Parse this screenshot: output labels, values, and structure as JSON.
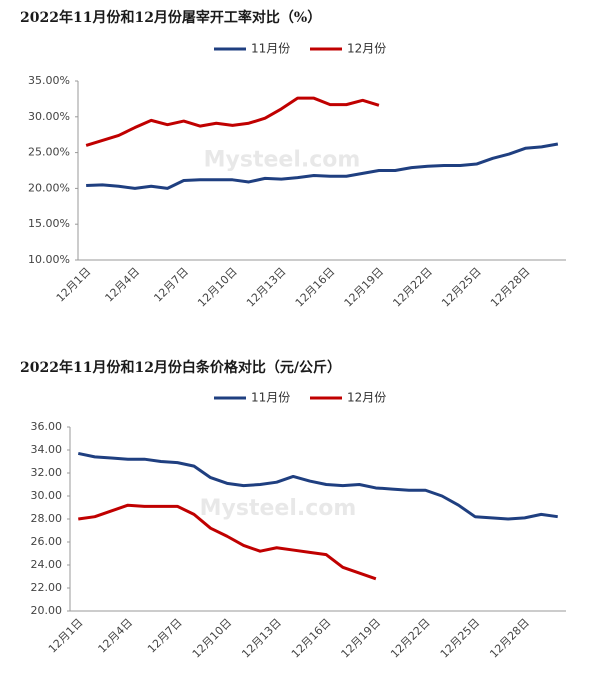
{
  "chart_data": [
    {
      "type": "line",
      "title": "2022年11月份和12月份屠宰开工率对比（%）",
      "categories": [
        "12月1日",
        null,
        null,
        "12月4日",
        null,
        null,
        "12月7日",
        null,
        null,
        "12月10日",
        null,
        null,
        "12月13日",
        null,
        null,
        "12月16日",
        null,
        null,
        "12月19日",
        null,
        null,
        "12月22日",
        null,
        null,
        "12月25日",
        null,
        null,
        "12月28日",
        null,
        null
      ],
      "series": [
        {
          "name": "11月份",
          "color": "#1f3f80",
          "values": [
            20.4,
            20.5,
            20.3,
            20.0,
            20.3,
            20.0,
            21.1,
            21.2,
            21.2,
            21.2,
            20.9,
            21.4,
            21.3,
            21.5,
            21.8,
            21.7,
            21.7,
            22.1,
            22.5,
            22.5,
            22.9,
            23.1,
            23.2,
            23.2,
            23.4,
            24.2,
            24.8,
            25.6,
            25.8,
            26.2
          ]
        },
        {
          "name": "12月份",
          "color": "#c00000",
          "values": [
            26.0,
            26.7,
            27.4,
            28.5,
            29.5,
            28.9,
            29.4,
            28.7,
            29.1,
            28.8,
            29.1,
            29.8,
            31.1,
            32.6,
            32.6,
            31.7,
            31.7,
            32.3,
            31.6,
            null,
            null,
            null,
            null,
            null,
            null,
            null,
            null,
            null,
            null,
            null
          ]
        }
      ],
      "ylim": [
        10,
        35
      ],
      "yticks": [
        {
          "value": 10,
          "label": "10.00%"
        },
        {
          "value": 15,
          "label": "15.00%"
        },
        {
          "value": 20,
          "label": "20.00%"
        },
        {
          "value": 25,
          "label": "25.00%"
        },
        {
          "value": 30,
          "label": "30.00%"
        },
        {
          "value": 35,
          "label": "35.00%"
        }
      ],
      "legend": "top",
      "watermark": "Mysteel.com"
    },
    {
      "type": "line",
      "title": "2022年11月份和12月份白条价格对比（元/公斤）",
      "categories": [
        "12月1日",
        null,
        null,
        "12月4日",
        null,
        null,
        "12月7日",
        null,
        null,
        "12月10日",
        null,
        null,
        "12月13日",
        null,
        null,
        "12月16日",
        null,
        null,
        "12月19日",
        null,
        null,
        "12月22日",
        null,
        null,
        "12月25日",
        null,
        null,
        "12月28日",
        null,
        null
      ],
      "series": [
        {
          "name": "11月份",
          "color": "#1f3f80",
          "values": [
            33.7,
            33.4,
            33.3,
            33.2,
            33.2,
            33.0,
            32.9,
            32.6,
            31.6,
            31.1,
            30.9,
            31.0,
            31.2,
            31.7,
            31.3,
            31.0,
            30.9,
            31.0,
            30.7,
            30.6,
            30.5,
            30.5,
            30.0,
            29.2,
            28.2,
            28.1,
            28.0,
            28.1,
            28.4,
            28.2
          ]
        },
        {
          "name": "12月份",
          "color": "#c00000",
          "values": [
            28.0,
            28.2,
            28.7,
            29.2,
            29.1,
            29.1,
            29.1,
            28.4,
            27.2,
            26.5,
            25.7,
            25.2,
            25.5,
            25.3,
            25.1,
            24.9,
            23.8,
            23.3,
            22.8,
            null,
            null,
            null,
            null,
            null,
            null,
            null,
            null,
            null,
            null,
            null
          ]
        }
      ],
      "ylim": [
        20,
        36
      ],
      "yticks": [
        {
          "value": 20,
          "label": "20.00"
        },
        {
          "value": 22,
          "label": "22.00"
        },
        {
          "value": 24,
          "label": "24.00"
        },
        {
          "value": 26,
          "label": "26.00"
        },
        {
          "value": 28,
          "label": "28.00"
        },
        {
          "value": 30,
          "label": "30.00"
        },
        {
          "value": 32,
          "label": "32.00"
        },
        {
          "value": 34,
          "label": "34.00"
        },
        {
          "value": 36,
          "label": "36.00"
        }
      ],
      "legend": "top",
      "watermark": "Mysteel.com"
    }
  ]
}
